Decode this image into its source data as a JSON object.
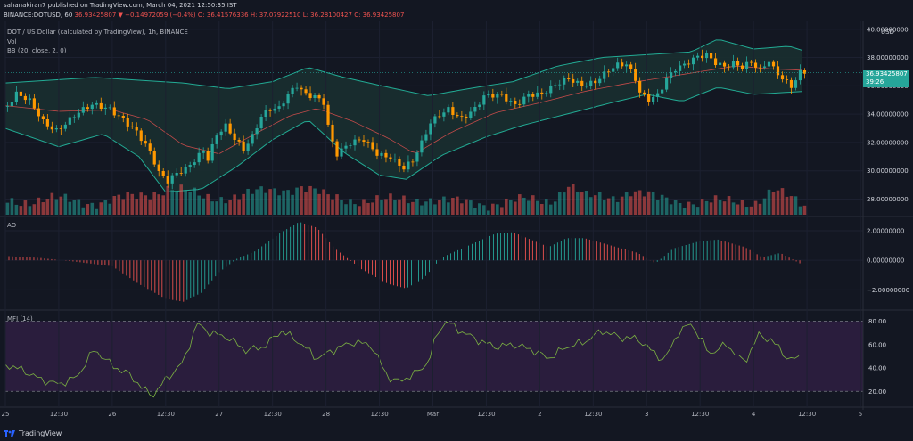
{
  "header": {
    "line1": "sahanakiran7 published on TradingView.com, March 04, 2021 12:50:35 IST",
    "symbol": "BINANCE:DOTUSD, 60",
    "close_value": "36.93425807",
    "change": "▼ −0.14972059 (−0.4%)",
    "open": "O: 36.41576336",
    "high": "H: 37.07922510",
    "low": "L: 36.28100427",
    "close": "C: 36.93425807"
  },
  "labels": {
    "title": "DOT / US Dollar (calculated by TradingView), 1h, BINANCE",
    "vol": "Vol",
    "bb": "BB (20, close, 2, 0)",
    "ao": "AO",
    "mfi": "MFI (14)",
    "currency": "USD",
    "price_tag": "36.93425807",
    "countdown": "39:26"
  },
  "footer": {
    "brand": "TradingView"
  },
  "colors": {
    "bg": "#131722",
    "up": "#26a69a",
    "down": "#ef5350",
    "candle_up": "#26a69a",
    "candle_down": "#ff9800",
    "bb_band": "#22ab94",
    "bb_mid": "#ef5350",
    "bb_fill": "#1a2f30",
    "mfi_fill": "#2a1d3d",
    "mfi_line": "#7cb342"
  },
  "chart_data": [
    {
      "type": "candlestick",
      "name": "price",
      "y_ticks": [
        "40.00000000",
        "38.00000000",
        "36.00000000",
        "34.00000000",
        "32.00000000",
        "30.00000000",
        "28.00000000"
      ],
      "y_tick_values": [
        40,
        38,
        36,
        34,
        32,
        30,
        28
      ],
      "ylim": [
        26.9,
        40.3
      ],
      "x_ticks": [
        "25",
        "12:30",
        "26",
        "12:30",
        "27",
        "12:30",
        "28",
        "12:30",
        "Mar",
        "12:30",
        "2",
        "12:30",
        "3",
        "12:30",
        "4",
        "12:30",
        "5"
      ],
      "x_tick_hours": [
        0,
        12,
        24,
        36,
        48,
        60,
        72,
        84,
        96,
        108,
        120,
        132,
        144,
        156,
        168,
        180,
        192
      ],
      "close_path": [
        [
          0,
          34.2
        ],
        [
          3,
          35.3
        ],
        [
          6,
          34.8
        ],
        [
          9,
          33.5
        ],
        [
          12,
          33.0
        ],
        [
          16,
          33.9
        ],
        [
          20,
          34.5
        ],
        [
          24,
          34.4
        ],
        [
          27,
          33.8
        ],
        [
          30,
          32.8
        ],
        [
          33,
          31.2
        ],
        [
          35,
          29.7
        ],
        [
          37,
          29.2
        ],
        [
          39,
          29.9
        ],
        [
          41,
          30.3
        ],
        [
          43,
          30.9
        ],
        [
          45,
          31.5
        ],
        [
          46,
          30.8
        ],
        [
          48,
          32.4
        ],
        [
          50,
          33.0
        ],
        [
          52,
          32.2
        ],
        [
          54,
          31.6
        ],
        [
          56,
          32.6
        ],
        [
          58,
          34.0
        ],
        [
          60,
          34.4
        ],
        [
          62,
          34.3
        ],
        [
          64,
          35.2
        ],
        [
          66,
          35.9
        ],
        [
          68,
          35.4
        ],
        [
          70,
          35.4
        ],
        [
          72,
          35.0
        ],
        [
          73,
          33.3
        ],
        [
          74,
          32.1
        ],
        [
          75,
          31.2
        ],
        [
          78,
          31.8
        ],
        [
          81,
          32.1
        ],
        [
          84,
          31.3
        ],
        [
          87,
          31.1
        ],
        [
          90,
          30.2
        ],
        [
          92,
          30.6
        ],
        [
          94,
          31.8
        ],
        [
          96,
          33.3
        ],
        [
          98,
          34.0
        ],
        [
          100,
          34.5
        ],
        [
          103,
          33.8
        ],
        [
          106,
          34.3
        ],
        [
          108,
          35.1
        ],
        [
          112,
          35.3
        ],
        [
          115,
          34.8
        ],
        [
          118,
          35.5
        ],
        [
          121,
          35.3
        ],
        [
          124,
          35.9
        ],
        [
          127,
          36.5
        ],
        [
          130,
          36.2
        ],
        [
          133,
          36.4
        ],
        [
          136,
          37.0
        ],
        [
          138,
          37.3
        ],
        [
          140,
          37.4
        ],
        [
          142,
          36.5
        ],
        [
          143,
          35.6
        ],
        [
          145,
          35.2
        ],
        [
          147,
          35.5
        ],
        [
          149,
          36.5
        ],
        [
          151,
          37.1
        ],
        [
          153,
          37.3
        ],
        [
          156,
          38.0
        ],
        [
          158,
          38.3
        ],
        [
          160,
          37.8
        ],
        [
          162,
          37.5
        ],
        [
          164,
          37.6
        ],
        [
          166,
          37.2
        ],
        [
          168,
          37.5
        ],
        [
          170,
          37.0
        ],
        [
          172,
          37.8
        ],
        [
          173,
          37.3
        ],
        [
          175,
          36.7
        ],
        [
          177,
          36.1
        ],
        [
          179,
          36.93
        ]
      ],
      "bb_upper": [
        [
          0,
          36.2
        ],
        [
          20,
          36.6
        ],
        [
          40,
          36.2
        ],
        [
          50,
          35.8
        ],
        [
          60,
          36.3
        ],
        [
          68,
          37.3
        ],
        [
          76,
          36.6
        ],
        [
          86,
          35.9
        ],
        [
          95,
          35.3
        ],
        [
          104,
          35.8
        ],
        [
          114,
          36.3
        ],
        [
          124,
          37.4
        ],
        [
          134,
          38.0
        ],
        [
          144,
          38.2
        ],
        [
          154,
          38.4
        ],
        [
          160,
          39.3
        ],
        [
          168,
          38.6
        ],
        [
          176,
          38.8
        ],
        [
          179,
          38.5
        ]
      ],
      "bb_lower": [
        [
          0,
          33.0
        ],
        [
          12,
          31.7
        ],
        [
          22,
          32.6
        ],
        [
          30,
          31.0
        ],
        [
          36,
          28.5
        ],
        [
          44,
          28.7
        ],
        [
          52,
          30.3
        ],
        [
          60,
          32.2
        ],
        [
          68,
          33.6
        ],
        [
          76,
          31.3
        ],
        [
          84,
          29.7
        ],
        [
          90,
          29.4
        ],
        [
          98,
          31.1
        ],
        [
          108,
          32.4
        ],
        [
          116,
          33.2
        ],
        [
          126,
          34.0
        ],
        [
          136,
          34.8
        ],
        [
          144,
          35.4
        ],
        [
          152,
          34.9
        ],
        [
          160,
          35.9
        ],
        [
          168,
          35.4
        ],
        [
          179,
          35.6
        ]
      ],
      "bb_mid": [
        [
          0,
          34.6
        ],
        [
          12,
          34.2
        ],
        [
          24,
          34.3
        ],
        [
          32,
          33.6
        ],
        [
          40,
          31.8
        ],
        [
          48,
          31.2
        ],
        [
          56,
          32.6
        ],
        [
          64,
          33.9
        ],
        [
          70,
          34.4
        ],
        [
          78,
          33.5
        ],
        [
          86,
          32.3
        ],
        [
          92,
          31.2
        ],
        [
          100,
          32.7
        ],
        [
          110,
          34.1
        ],
        [
          120,
          34.8
        ],
        [
          130,
          35.6
        ],
        [
          140,
          36.2
        ],
        [
          148,
          36.6
        ],
        [
          156,
          37.0
        ],
        [
          164,
          37.4
        ],
        [
          172,
          37.2
        ],
        [
          179,
          37.1
        ]
      ]
    },
    {
      "type": "bar",
      "name": "Vol",
      "values_path": [
        [
          0,
          0.45
        ],
        [
          10,
          0.5
        ],
        [
          20,
          0.42
        ],
        [
          28,
          0.55
        ],
        [
          33,
          0.75
        ],
        [
          36,
          0.9
        ],
        [
          39,
          0.8
        ],
        [
          44,
          0.55
        ],
        [
          50,
          0.6
        ],
        [
          56,
          0.7
        ],
        [
          62,
          0.85
        ],
        [
          66,
          0.95
        ],
        [
          72,
          0.55
        ],
        [
          78,
          0.5
        ],
        [
          86,
          0.45
        ],
        [
          94,
          0.55
        ],
        [
          100,
          0.4
        ],
        [
          108,
          0.38
        ],
        [
          116,
          0.45
        ],
        [
          122,
          0.5
        ],
        [
          126,
          1.0
        ],
        [
          130,
          0.55
        ],
        [
          136,
          0.6
        ],
        [
          140,
          0.8
        ],
        [
          146,
          0.5
        ],
        [
          152,
          0.45
        ],
        [
          160,
          0.4
        ],
        [
          168,
          0.45
        ],
        [
          172,
          0.8
        ],
        [
          176,
          0.5
        ],
        [
          179,
          0.3
        ]
      ]
    },
    {
      "type": "histogram",
      "name": "AO",
      "y_ticks": [
        "2.00000000",
        "0.00000000",
        "−2.00000000"
      ],
      "y_tick_values": [
        2,
        0,
        -2
      ],
      "ylim": [
        -3.3,
        2.9
      ],
      "values_path": [
        [
          0,
          0.3
        ],
        [
          8,
          0.15
        ],
        [
          16,
          -0.1
        ],
        [
          24,
          -0.4
        ],
        [
          30,
          -1.6
        ],
        [
          36,
          -2.6
        ],
        [
          40,
          -2.8
        ],
        [
          44,
          -2.2
        ],
        [
          48,
          -0.8
        ],
        [
          52,
          0.1
        ],
        [
          56,
          0.6
        ],
        [
          62,
          1.9
        ],
        [
          66,
          2.6
        ],
        [
          70,
          2.2
        ],
        [
          74,
          0.8
        ],
        [
          80,
          -0.6
        ],
        [
          86,
          -1.6
        ],
        [
          90,
          -1.9
        ],
        [
          94,
          -1.2
        ],
        [
          98,
          0.2
        ],
        [
          104,
          1.0
        ],
        [
          110,
          1.8
        ],
        [
          114,
          1.9
        ],
        [
          118,
          1.4
        ],
        [
          122,
          0.9
        ],
        [
          126,
          1.5
        ],
        [
          130,
          1.5
        ],
        [
          136,
          1.0
        ],
        [
          142,
          0.5
        ],
        [
          146,
          -0.2
        ],
        [
          150,
          0.8
        ],
        [
          156,
          1.3
        ],
        [
          160,
          1.4
        ],
        [
          166,
          0.9
        ],
        [
          170,
          0.2
        ],
        [
          174,
          0.5
        ],
        [
          179,
          -0.3
        ]
      ]
    },
    {
      "type": "line",
      "name": "MFI",
      "y_ticks": [
        "80.00",
        "60.00",
        "40.00",
        "20.00"
      ],
      "y_tick_values": [
        80,
        60,
        40,
        20
      ],
      "ylim": [
        8,
        88
      ],
      "bands": [
        80,
        20
      ],
      "values_path": [
        [
          0,
          43
        ],
        [
          4,
          38
        ],
        [
          8,
          30
        ],
        [
          12,
          26
        ],
        [
          16,
          32
        ],
        [
          20,
          56
        ],
        [
          24,
          42
        ],
        [
          28,
          34
        ],
        [
          31,
          22
        ],
        [
          33,
          16
        ],
        [
          36,
          30
        ],
        [
          40,
          45
        ],
        [
          43,
          78
        ],
        [
          46,
          70
        ],
        [
          50,
          66
        ],
        [
          54,
          55
        ],
        [
          58,
          58
        ],
        [
          62,
          72
        ],
        [
          66,
          62
        ],
        [
          70,
          48
        ],
        [
          74,
          56
        ],
        [
          78,
          62
        ],
        [
          82,
          60
        ],
        [
          86,
          32
        ],
        [
          88,
          28
        ],
        [
          92,
          35
        ],
        [
          95,
          45
        ],
        [
          97,
          70
        ],
        [
          99,
          80
        ],
        [
          102,
          72
        ],
        [
          106,
          64
        ],
        [
          110,
          58
        ],
        [
          114,
          60
        ],
        [
          118,
          56
        ],
        [
          122,
          48
        ],
        [
          126,
          58
        ],
        [
          130,
          62
        ],
        [
          134,
          72
        ],
        [
          138,
          66
        ],
        [
          142,
          65
        ],
        [
          145,
          55
        ],
        [
          148,
          46
        ],
        [
          151,
          70
        ],
        [
          154,
          78
        ],
        [
          156,
          66
        ],
        [
          158,
          52
        ],
        [
          162,
          60
        ],
        [
          166,
          44
        ],
        [
          169,
          68
        ],
        [
          172,
          64
        ],
        [
          176,
          47
        ],
        [
          179,
          49
        ]
      ]
    }
  ]
}
